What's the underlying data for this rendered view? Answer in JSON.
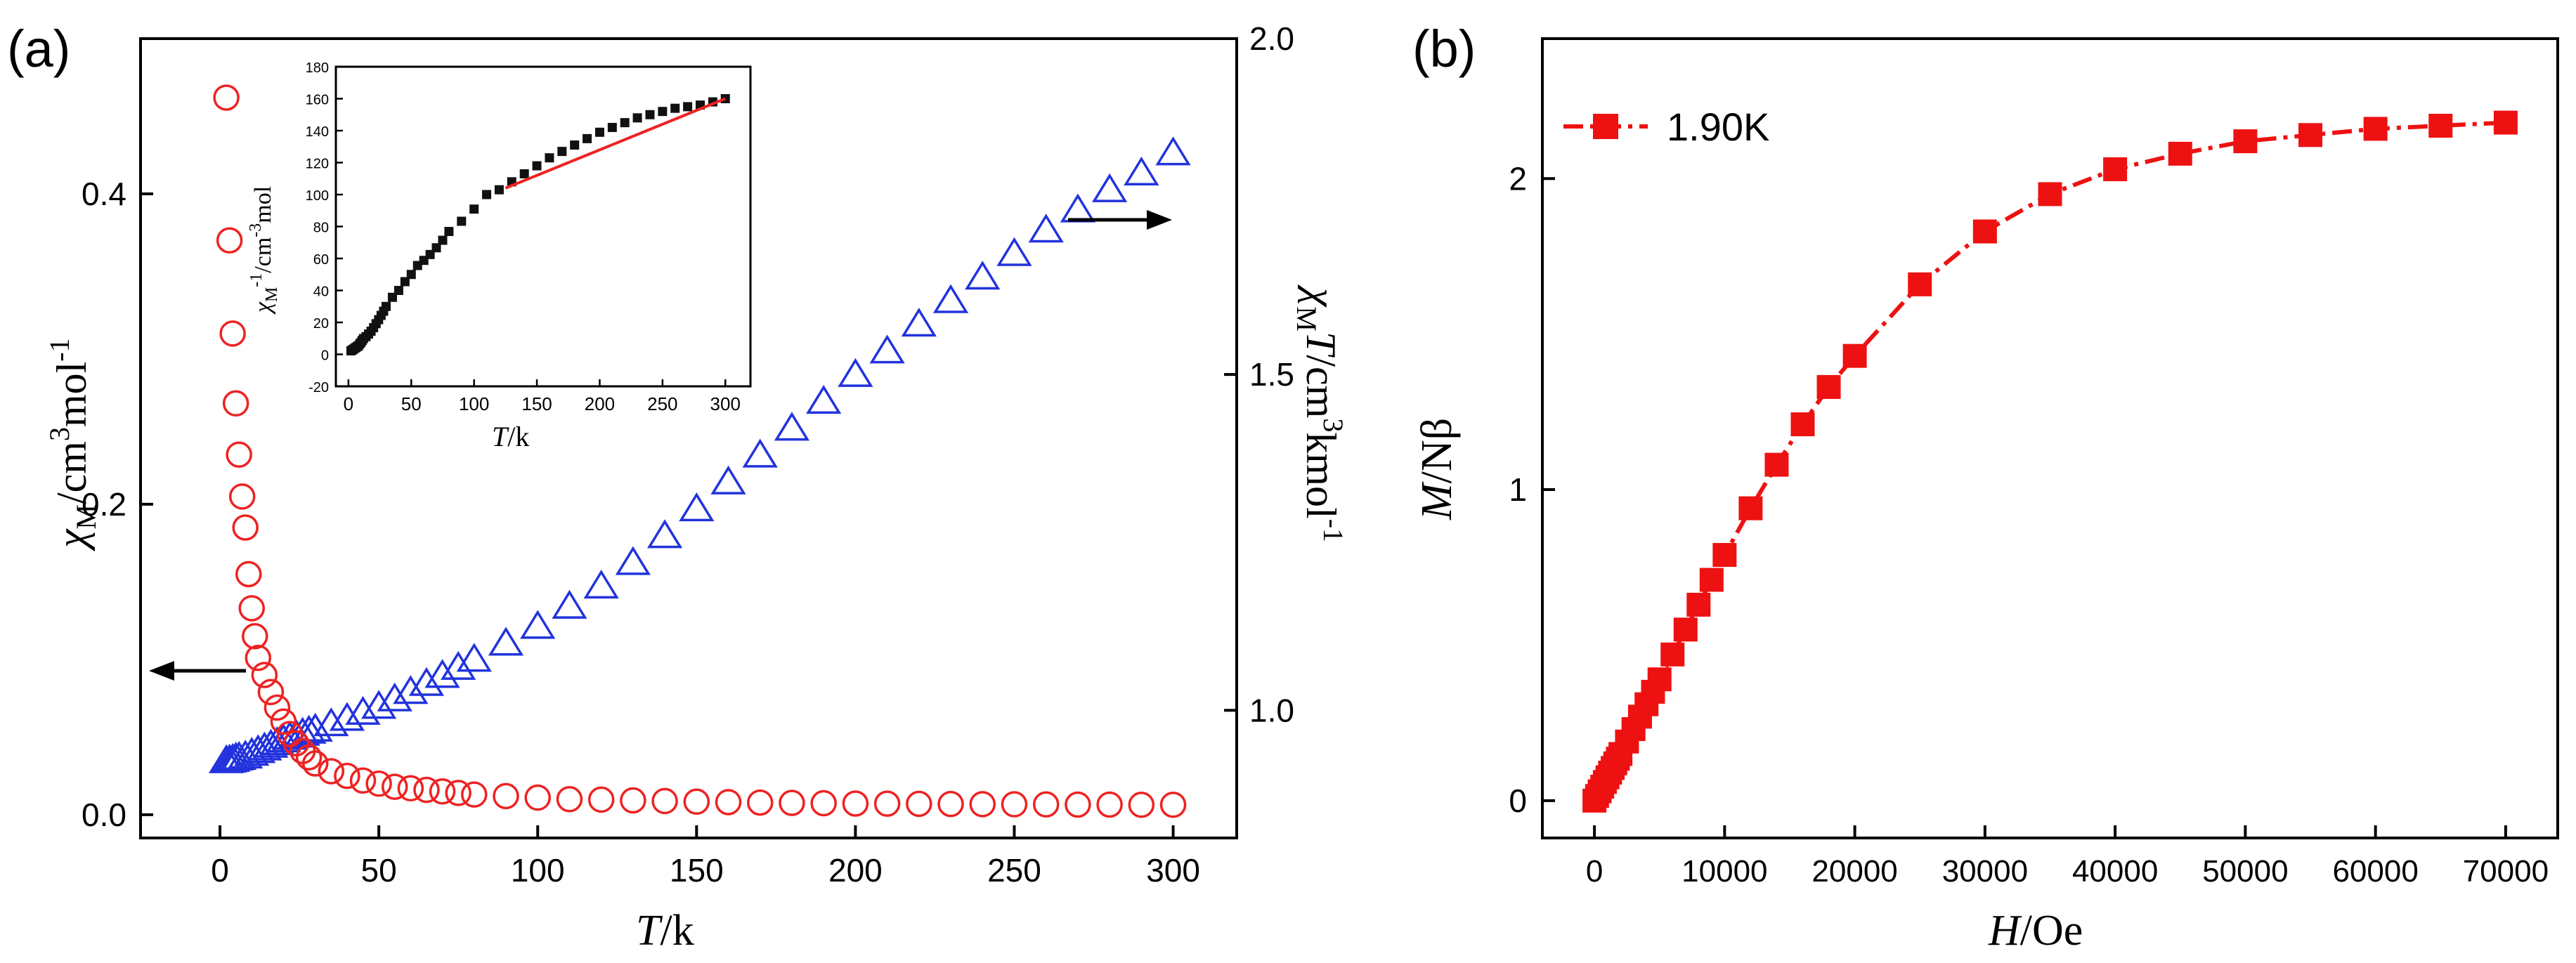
{
  "panel_a": {
    "label": "(a)",
    "xlabel_italic": "T",
    "xlabel_rest": "/k",
    "ylabel_left": {
      "chi": "χ",
      "sub": "M",
      "unit_a": "/cm",
      "sup3": "3",
      "unit_b": "mol",
      "supm1": "-1"
    },
    "ylabel_right": {
      "chi": "χ",
      "sub": "M",
      "italic": "T",
      "unit_a": "/cm",
      "sup3": "3",
      "unit_b": "kmol",
      "supm1": "-1"
    },
    "inset": {
      "xlabel_italic": "T",
      "xlabel_rest": "/k",
      "ylabel": {
        "chi": "χ",
        "sub": "M",
        "sup": "-1",
        "unit_a": "/cm",
        "sup2": "-3",
        "unit_b": "mol"
      }
    }
  },
  "panel_b": {
    "label": "(b)",
    "xlabel_italic": "H",
    "xlabel_rest": "/Oe",
    "ylabel_italic": "M",
    "ylabel_rest": "/Nβ",
    "legend": "1.90K"
  },
  "colors": {
    "chi_series": "#ee2222",
    "chiT_series": "#2233dd",
    "inset_series": "#111111",
    "inset_fit": "#ee2222",
    "mag_series": "#ee1111",
    "axis": "#000000"
  },
  "chart_data": [
    {
      "type": "scatter",
      "panel": "a",
      "title": "",
      "xlabel": "T/k",
      "x_ticks": [
        0,
        50,
        100,
        150,
        200,
        250,
        300
      ],
      "xlim": [
        -25,
        320
      ],
      "y_left": {
        "label": "χM/cm3mol-1",
        "ticks": [
          "0.0",
          "0.2",
          "0.4"
        ],
        "lim": [
          -0.015,
          0.5
        ]
      },
      "y_right": {
        "label": "χMT/cm3kmol-1",
        "ticks": [
          "1.0",
          "1.5",
          "2.0"
        ],
        "lim": [
          0.81,
          2.0
        ]
      },
      "series": [
        {
          "axis": "left",
          "marker": "circle",
          "x": [
            2,
            3,
            4,
            5,
            6,
            7,
            8,
            9,
            10,
            11,
            12,
            14,
            16,
            18,
            20,
            22,
            24,
            26,
            28,
            30,
            35,
            40,
            45,
            50,
            55,
            60,
            65,
            70,
            75,
            80,
            90,
            100,
            110,
            120,
            130,
            140,
            150,
            160,
            170,
            180,
            190,
            200,
            210,
            220,
            230,
            240,
            250,
            260,
            270,
            280,
            290,
            300
          ],
          "y": [
            0.462,
            0.37,
            0.31,
            0.265,
            0.232,
            0.205,
            0.185,
            0.155,
            0.133,
            0.115,
            0.101,
            0.09,
            0.079,
            0.069,
            0.06,
            0.052,
            0.046,
            0.041,
            0.037,
            0.033,
            0.028,
            0.025,
            0.022,
            0.02,
            0.018,
            0.017,
            0.016,
            0.015,
            0.014,
            0.013,
            0.012,
            0.011,
            0.01,
            0.0097,
            0.0092,
            0.0088,
            0.0084,
            0.0081,
            0.0078,
            0.0076,
            0.0074,
            0.0072,
            0.0071,
            0.007,
            0.0069,
            0.0068,
            0.0067,
            0.0066,
            0.0065,
            0.0065,
            0.0064,
            0.0064
          ]
        },
        {
          "axis": "right",
          "marker": "triangle",
          "x": [
            2,
            3,
            4,
            5,
            6,
            8,
            10,
            12,
            14,
            16,
            18,
            20,
            22,
            24,
            26,
            28,
            30,
            35,
            40,
            45,
            50,
            55,
            60,
            65,
            70,
            75,
            80,
            90,
            100,
            110,
            120,
            130,
            140,
            150,
            160,
            170,
            180,
            190,
            200,
            210,
            220,
            230,
            240,
            250,
            260,
            270,
            280,
            290,
            300
          ],
          "y": [
            0.925,
            0.926,
            0.927,
            0.929,
            0.93,
            0.932,
            0.936,
            0.94,
            0.944,
            0.948,
            0.952,
            0.956,
            0.96,
            0.963,
            0.966,
            0.969,
            0.972,
            0.98,
            0.988,
            0.997,
            1.006,
            1.017,
            1.028,
            1.04,
            1.052,
            1.064,
            1.076,
            1.1,
            1.125,
            1.155,
            1.185,
            1.22,
            1.26,
            1.3,
            1.34,
            1.38,
            1.42,
            1.46,
            1.5,
            1.535,
            1.575,
            1.61,
            1.645,
            1.68,
            1.715,
            1.745,
            1.775,
            1.8,
            1.83
          ]
        }
      ]
    },
    {
      "type": "scatter",
      "panel": "a-inset",
      "xlabel": "T/k",
      "x_ticks": [
        0,
        50,
        100,
        150,
        200,
        250,
        300
      ],
      "xlim": [
        -10,
        320
      ],
      "ylabel": "χM-1/cm-3mol",
      "y_ticks": [
        -20,
        0,
        20,
        40,
        60,
        80,
        100,
        120,
        140,
        160,
        180
      ],
      "ylim": [
        -20,
        180
      ],
      "series": [
        {
          "marker": "square",
          "x": [
            2,
            3,
            4,
            5,
            6,
            7,
            8,
            9,
            10,
            11,
            12,
            14,
            16,
            18,
            20,
            22,
            24,
            26,
            28,
            30,
            35,
            40,
            45,
            50,
            55,
            60,
            65,
            70,
            75,
            80,
            90,
            100,
            110,
            120,
            130,
            140,
            150,
            160,
            170,
            180,
            190,
            200,
            210,
            220,
            230,
            240,
            250,
            260,
            270,
            280,
            290,
            300
          ],
          "y": [
            2.2,
            2.7,
            3.2,
            3.8,
            4.3,
            4.9,
            5.4,
            6.5,
            7.5,
            8.7,
            9.9,
            11.1,
            12.7,
            14.5,
            16.7,
            19.2,
            21.7,
            24.4,
            27,
            30,
            35.7,
            40,
            45.5,
            50,
            55.6,
            58.8,
            62.5,
            66.7,
            71.4,
            76.9,
            83.3,
            90.9,
            100,
            103,
            108,
            113,
            118,
            123,
            127,
            131,
            135,
            139,
            142,
            145,
            148,
            150,
            152,
            154,
            155,
            156,
            158,
            160
          ]
        },
        {
          "type": "line",
          "name_visible": false,
          "x": [
            125,
            300
          ],
          "y": [
            104,
            160
          ]
        }
      ]
    },
    {
      "type": "line",
      "panel": "b",
      "title": "",
      "xlabel": "H/Oe",
      "ylabel": "M/Nβ",
      "x_ticks": [
        0,
        10000,
        20000,
        30000,
        40000,
        50000,
        60000,
        70000
      ],
      "y_ticks": [
        0,
        1,
        2
      ],
      "xlim": [
        -4000,
        74000
      ],
      "ylim": [
        -0.12,
        2.45
      ],
      "legend_position": "top-left",
      "series": [
        {
          "name": "1.90K",
          "marker": "square",
          "line_style": "dash-dot",
          "x": [
            0,
            200,
            400,
            600,
            800,
            1000,
            1200,
            1400,
            1600,
            1800,
            2000,
            2500,
            3000,
            3500,
            4000,
            4500,
            5000,
            6000,
            7000,
            8000,
            9000,
            10000,
            12000,
            14000,
            16000,
            18000,
            20000,
            25000,
            30000,
            35000,
            40000,
            45000,
            50000,
            55000,
            60000,
            65000,
            70000
          ],
          "y": [
            0.0,
            0.015,
            0.03,
            0.045,
            0.06,
            0.075,
            0.09,
            0.105,
            0.12,
            0.135,
            0.15,
            0.19,
            0.23,
            0.27,
            0.31,
            0.35,
            0.39,
            0.47,
            0.55,
            0.63,
            0.71,
            0.79,
            0.94,
            1.08,
            1.21,
            1.33,
            1.43,
            1.66,
            1.83,
            1.95,
            2.03,
            2.08,
            2.12,
            2.14,
            2.16,
            2.17,
            2.18
          ]
        }
      ]
    }
  ]
}
